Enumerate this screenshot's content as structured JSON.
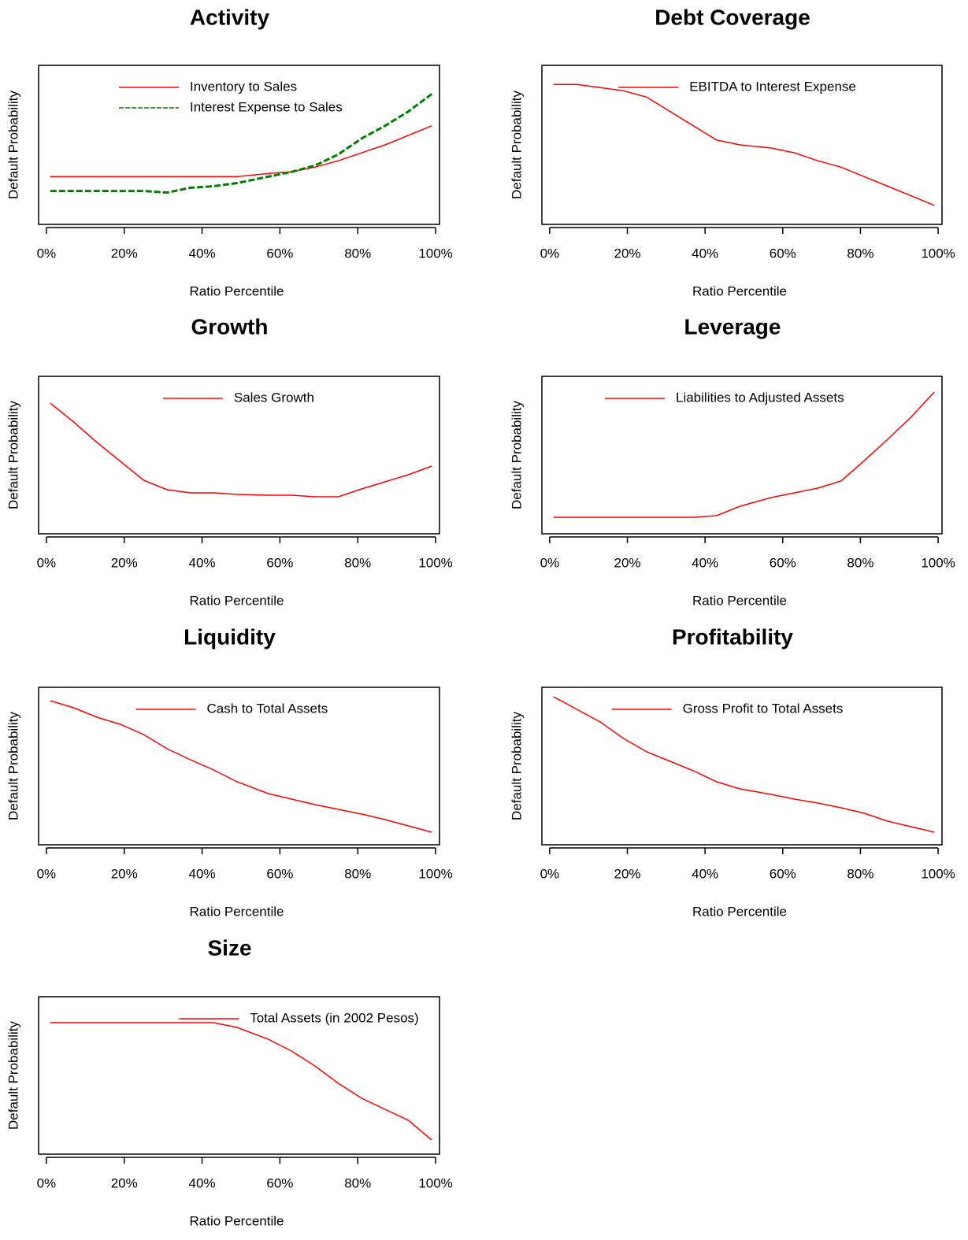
{
  "chart_data": [
    {
      "type": "line",
      "title": "Activity",
      "xlabel": "Ratio Percentile",
      "ylabel": "Default Probability",
      "x": [
        1,
        7,
        13,
        19,
        25,
        31,
        37,
        43,
        49,
        57,
        63,
        69,
        75,
        81,
        87,
        93,
        99
      ],
      "xlim": [
        -2,
        101
      ],
      "ylim": [
        0,
        1
      ],
      "xticks": [
        {
          "value": 0,
          "label": "0%"
        },
        {
          "value": 20,
          "label": "20%"
        },
        {
          "value": 40,
          "label": "40%"
        },
        {
          "value": 60,
          "label": "60%"
        },
        {
          "value": 80,
          "label": "80%"
        },
        {
          "value": 100,
          "label": "100%"
        }
      ],
      "legend": "top",
      "series": [
        {
          "name": "Inventory to Sales",
          "color": "#ff0000",
          "style": "solid",
          "values": [
            0.3,
            0.3,
            0.3,
            0.3,
            0.3,
            0.3,
            0.3,
            0.3,
            0.3,
            0.32,
            0.33,
            0.36,
            0.4,
            0.45,
            0.5,
            0.56,
            0.62
          ]
        },
        {
          "name": "Interest Expense to Sales",
          "color": "#008000",
          "style": "dashed",
          "values": [
            0.21,
            0.21,
            0.21,
            0.21,
            0.21,
            0.2,
            0.23,
            0.24,
            0.26,
            0.3,
            0.33,
            0.37,
            0.44,
            0.54,
            0.62,
            0.71,
            0.82
          ]
        }
      ]
    },
    {
      "type": "line",
      "title": "Debt Coverage",
      "xlabel": "Ratio Percentile",
      "ylabel": "Default Probability",
      "x": [
        1,
        7,
        13,
        19,
        25,
        31,
        37,
        43,
        49,
        57,
        63,
        69,
        75,
        81,
        87,
        93,
        99
      ],
      "xlim": [
        -2,
        101
      ],
      "ylim": [
        0,
        1
      ],
      "xticks": [
        {
          "value": 0,
          "label": "0%"
        },
        {
          "value": 20,
          "label": "20%"
        },
        {
          "value": 40,
          "label": "40%"
        },
        {
          "value": 60,
          "label": "60%"
        },
        {
          "value": 80,
          "label": "80%"
        },
        {
          "value": 100,
          "label": "100%"
        }
      ],
      "legend": "top",
      "series": [
        {
          "name": "EBITDA to Interest Expense",
          "color": "#ff0000",
          "style": "solid",
          "values": [
            0.88,
            0.88,
            0.86,
            0.84,
            0.8,
            0.71,
            0.62,
            0.53,
            0.5,
            0.48,
            0.45,
            0.4,
            0.36,
            0.3,
            0.24,
            0.18,
            0.12
          ]
        }
      ]
    },
    {
      "type": "line",
      "title": "Growth",
      "xlabel": "Ratio Percentile",
      "ylabel": "Default Probability",
      "x": [
        1,
        7,
        13,
        19,
        25,
        31,
        37,
        43,
        49,
        57,
        63,
        69,
        75,
        81,
        87,
        93,
        99
      ],
      "xlim": [
        -2,
        101
      ],
      "ylim": [
        0,
        1
      ],
      "xticks": [
        {
          "value": 0,
          "label": "0%"
        },
        {
          "value": 20,
          "label": "20%"
        },
        {
          "value": 40,
          "label": "40%"
        },
        {
          "value": 60,
          "label": "60%"
        },
        {
          "value": 80,
          "label": "80%"
        },
        {
          "value": 100,
          "label": "100%"
        }
      ],
      "legend": "top",
      "series": [
        {
          "name": "Sales Growth",
          "color": "#ff0000",
          "style": "solid",
          "values": [
            0.83,
            0.71,
            0.58,
            0.46,
            0.34,
            0.28,
            0.26,
            0.26,
            0.25,
            0.245,
            0.245,
            0.235,
            0.235,
            0.285,
            0.33,
            0.375,
            0.43
          ]
        }
      ]
    },
    {
      "type": "line",
      "title": "Leverage",
      "xlabel": "Ratio Percentile",
      "ylabel": "Default Probability",
      "x": [
        1,
        7,
        13,
        19,
        25,
        31,
        37,
        43,
        49,
        57,
        63,
        69,
        75,
        81,
        87,
        93,
        99
      ],
      "xlim": [
        -2,
        101
      ],
      "ylim": [
        0,
        1
      ],
      "xticks": [
        {
          "value": 0,
          "label": "0%"
        },
        {
          "value": 20,
          "label": "20%"
        },
        {
          "value": 40,
          "label": "40%"
        },
        {
          "value": 60,
          "label": "60%"
        },
        {
          "value": 80,
          "label": "80%"
        },
        {
          "value": 100,
          "label": "100%"
        }
      ],
      "legend": "top",
      "series": [
        {
          "name": "Liabilities to Adjusted Assets",
          "color": "#ff0000",
          "style": "solid",
          "values": [
            0.105,
            0.105,
            0.105,
            0.105,
            0.105,
            0.105,
            0.105,
            0.115,
            0.175,
            0.23,
            0.26,
            0.29,
            0.335,
            0.465,
            0.6,
            0.74,
            0.9
          ]
        }
      ]
    },
    {
      "type": "line",
      "title": "Liquidity",
      "xlabel": "Ratio Percentile",
      "ylabel": "Default Probability",
      "x": [
        1,
        7,
        13,
        19,
        25,
        31,
        37,
        43,
        49,
        57,
        63,
        69,
        75,
        81,
        87,
        93,
        99
      ],
      "xlim": [
        -2,
        101
      ],
      "ylim": [
        0,
        1
      ],
      "xticks": [
        {
          "value": 0,
          "label": "0%"
        },
        {
          "value": 20,
          "label": "20%"
        },
        {
          "value": 40,
          "label": "40%"
        },
        {
          "value": 60,
          "label": "60%"
        },
        {
          "value": 80,
          "label": "80%"
        },
        {
          "value": 100,
          "label": "100%"
        }
      ],
      "legend": "top",
      "series": [
        {
          "name": "Cash to Total Assets",
          "color": "#ff0000",
          "style": "solid",
          "values": [
            0.915,
            0.87,
            0.81,
            0.765,
            0.7,
            0.61,
            0.54,
            0.475,
            0.4,
            0.325,
            0.29,
            0.255,
            0.225,
            0.195,
            0.16,
            0.12,
            0.08
          ]
        }
      ]
    },
    {
      "type": "line",
      "title": "Profitability",
      "xlabel": "Ratio Percentile",
      "ylabel": "Default Probability",
      "x": [
        1,
        7,
        13,
        19,
        25,
        31,
        37,
        43,
        49,
        57,
        63,
        69,
        75,
        81,
        87,
        93,
        99
      ],
      "xlim": [
        -2,
        101
      ],
      "ylim": [
        0,
        1
      ],
      "xticks": [
        {
          "value": 0,
          "label": "0%"
        },
        {
          "value": 20,
          "label": "20%"
        },
        {
          "value": 40,
          "label": "40%"
        },
        {
          "value": 60,
          "label": "60%"
        },
        {
          "value": 80,
          "label": "80%"
        },
        {
          "value": 100,
          "label": "100%"
        }
      ],
      "legend": "top",
      "series": [
        {
          "name": "Gross Profit to Total Assets",
          "color": "#ff0000",
          "style": "solid",
          "values": [
            0.94,
            0.86,
            0.78,
            0.675,
            0.59,
            0.53,
            0.47,
            0.4,
            0.355,
            0.32,
            0.29,
            0.265,
            0.235,
            0.2,
            0.15,
            0.115,
            0.08
          ]
        }
      ]
    },
    {
      "type": "line",
      "title": "Size",
      "xlabel": "Ratio Percentile",
      "ylabel": "Default Probability",
      "x": [
        1,
        7,
        13,
        19,
        25,
        31,
        37,
        43,
        49,
        57,
        63,
        69,
        75,
        81,
        87,
        93,
        99
      ],
      "xlim": [
        -2,
        101
      ],
      "ylim": [
        0,
        1
      ],
      "xticks": [
        {
          "value": 0,
          "label": "0%"
        },
        {
          "value": 20,
          "label": "20%"
        },
        {
          "value": 40,
          "label": "40%"
        },
        {
          "value": 60,
          "label": "60%"
        },
        {
          "value": 80,
          "label": "80%"
        },
        {
          "value": 100,
          "label": "100%"
        }
      ],
      "legend": "top-right",
      "series": [
        {
          "name": "Total Assets (in 2002 Pesos)",
          "color": "#ff0000",
          "style": "solid",
          "values": [
            0.835,
            0.835,
            0.835,
            0.835,
            0.835,
            0.835,
            0.835,
            0.835,
            0.805,
            0.73,
            0.655,
            0.56,
            0.45,
            0.355,
            0.285,
            0.215,
            0.09
          ]
        }
      ]
    }
  ]
}
